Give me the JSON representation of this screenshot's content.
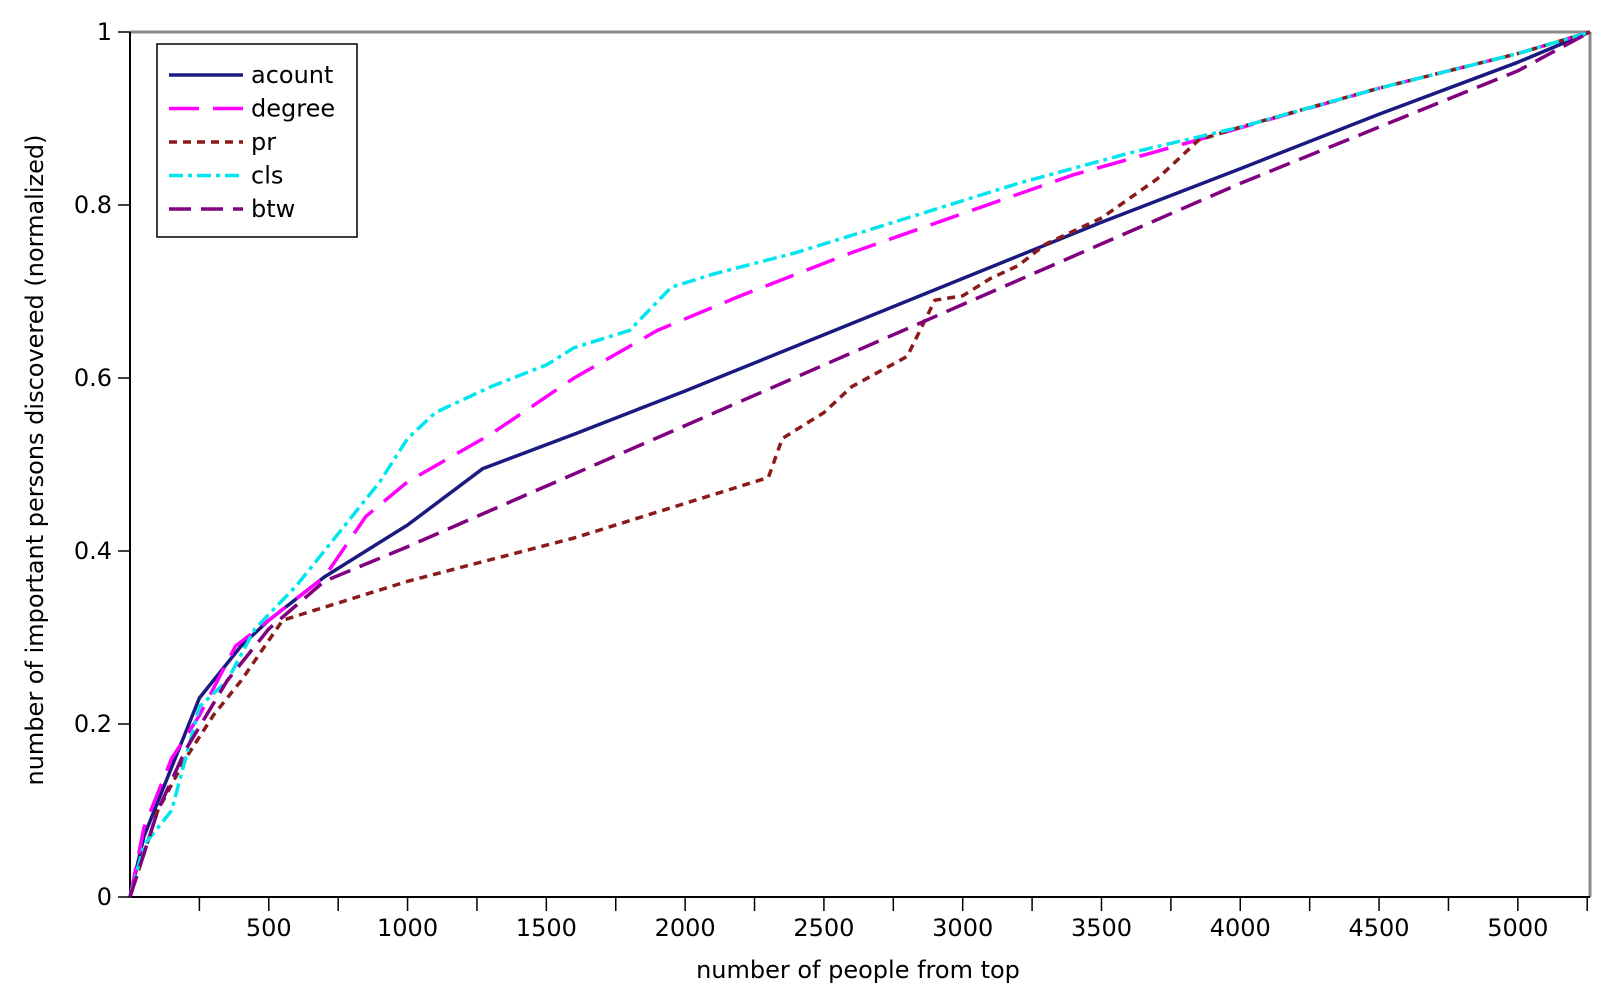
{
  "chart_data": {
    "type": "line",
    "title": "",
    "xlabel": "number of people from top",
    "ylabel": "number of important persons discovered (normalized)",
    "xlim": [
      0,
      5260
    ],
    "ylim": [
      0,
      1
    ],
    "x_tick_labels": [
      "500",
      "1000",
      "1500",
      "2000",
      "2500",
      "3000",
      "3500",
      "4000",
      "4500",
      "5000"
    ],
    "x_tick_values": [
      500,
      1000,
      1500,
      2000,
      2500,
      3000,
      3500,
      4000,
      4500,
      5000
    ],
    "x_minor_ticks": [
      250,
      750,
      1250,
      1750,
      2250,
      2750,
      3250,
      3750,
      4250,
      4750,
      5250
    ],
    "y_tick_labels": [
      "0",
      "0.2",
      "0.4",
      "0.6",
      "0.8",
      "1"
    ],
    "y_tick_values": [
      0,
      0.2,
      0.4,
      0.6,
      0.8,
      1
    ],
    "grid": false,
    "legend_position": "top-left",
    "series": [
      {
        "name": "acount",
        "color": "#1a1a80",
        "dash": "solid",
        "points": [
          [
            0,
            0
          ],
          [
            50,
            0.07
          ],
          [
            150,
            0.15
          ],
          [
            250,
            0.23
          ],
          [
            400,
            0.29
          ],
          [
            500,
            0.32
          ],
          [
            700,
            0.37
          ],
          [
            1000,
            0.43
          ],
          [
            1270,
            0.495
          ],
          [
            1600,
            0.535
          ],
          [
            2000,
            0.585
          ],
          [
            2500,
            0.65
          ],
          [
            3000,
            0.715
          ],
          [
            3500,
            0.78
          ],
          [
            4000,
            0.842
          ],
          [
            4500,
            0.905
          ],
          [
            5000,
            0.965
          ],
          [
            5260,
            1.0
          ]
        ]
      },
      {
        "name": "degree",
        "color": "#ff00ff",
        "dash": "long-dash",
        "points": [
          [
            0,
            0
          ],
          [
            50,
            0.08
          ],
          [
            150,
            0.16
          ],
          [
            250,
            0.21
          ],
          [
            380,
            0.29
          ],
          [
            500,
            0.32
          ],
          [
            600,
            0.345
          ],
          [
            700,
            0.37
          ],
          [
            850,
            0.44
          ],
          [
            1000,
            0.48
          ],
          [
            1300,
            0.535
          ],
          [
            1600,
            0.6
          ],
          [
            1900,
            0.655
          ],
          [
            2200,
            0.695
          ],
          [
            2600,
            0.745
          ],
          [
            3000,
            0.79
          ],
          [
            3400,
            0.835
          ],
          [
            3900,
            0.88
          ],
          [
            4500,
            0.935
          ],
          [
            5000,
            0.975
          ],
          [
            5260,
            1.0
          ]
        ]
      },
      {
        "name": "pr",
        "color": "#8b1a1a",
        "dash": "short-dash",
        "points": [
          [
            0,
            0
          ],
          [
            100,
            0.1
          ],
          [
            200,
            0.16
          ],
          [
            300,
            0.21
          ],
          [
            400,
            0.25
          ],
          [
            550,
            0.32
          ],
          [
            800,
            0.345
          ],
          [
            1000,
            0.365
          ],
          [
            1300,
            0.39
          ],
          [
            1600,
            0.415
          ],
          [
            2000,
            0.455
          ],
          [
            2300,
            0.485
          ],
          [
            2350,
            0.53
          ],
          [
            2500,
            0.56
          ],
          [
            2600,
            0.59
          ],
          [
            2800,
            0.625
          ],
          [
            2900,
            0.69
          ],
          [
            3000,
            0.695
          ],
          [
            3100,
            0.715
          ],
          [
            3200,
            0.73
          ],
          [
            3300,
            0.755
          ],
          [
            3500,
            0.785
          ],
          [
            3700,
            0.83
          ],
          [
            3850,
            0.875
          ],
          [
            4000,
            0.89
          ],
          [
            4500,
            0.935
          ],
          [
            5000,
            0.975
          ],
          [
            5260,
            1.0
          ]
        ]
      },
      {
        "name": "cls",
        "color": "#00e5ee",
        "dash": "dash-dot",
        "points": [
          [
            0,
            0
          ],
          [
            50,
            0.06
          ],
          [
            150,
            0.1
          ],
          [
            250,
            0.22
          ],
          [
            350,
            0.25
          ],
          [
            450,
            0.31
          ],
          [
            600,
            0.36
          ],
          [
            750,
            0.42
          ],
          [
            900,
            0.48
          ],
          [
            1000,
            0.53
          ],
          [
            1100,
            0.56
          ],
          [
            1300,
            0.59
          ],
          [
            1500,
            0.615
          ],
          [
            1600,
            0.635
          ],
          [
            1800,
            0.655
          ],
          [
            1950,
            0.705
          ],
          [
            2100,
            0.72
          ],
          [
            2400,
            0.745
          ],
          [
            2800,
            0.785
          ],
          [
            3200,
            0.825
          ],
          [
            3600,
            0.86
          ],
          [
            4000,
            0.89
          ],
          [
            4500,
            0.935
          ],
          [
            5000,
            0.975
          ],
          [
            5260,
            1.0
          ]
        ]
      },
      {
        "name": "btw",
        "color": "#800080",
        "dash": "medium-dash",
        "points": [
          [
            0,
            0
          ],
          [
            100,
            0.1
          ],
          [
            200,
            0.17
          ],
          [
            350,
            0.25
          ],
          [
            500,
            0.31
          ],
          [
            700,
            0.365
          ],
          [
            1000,
            0.405
          ],
          [
            1500,
            0.475
          ],
          [
            2000,
            0.545
          ],
          [
            2500,
            0.615
          ],
          [
            3000,
            0.685
          ],
          [
            3500,
            0.755
          ],
          [
            4000,
            0.825
          ],
          [
            4500,
            0.89
          ],
          [
            5000,
            0.955
          ],
          [
            5260,
            1.0
          ]
        ]
      }
    ]
  }
}
